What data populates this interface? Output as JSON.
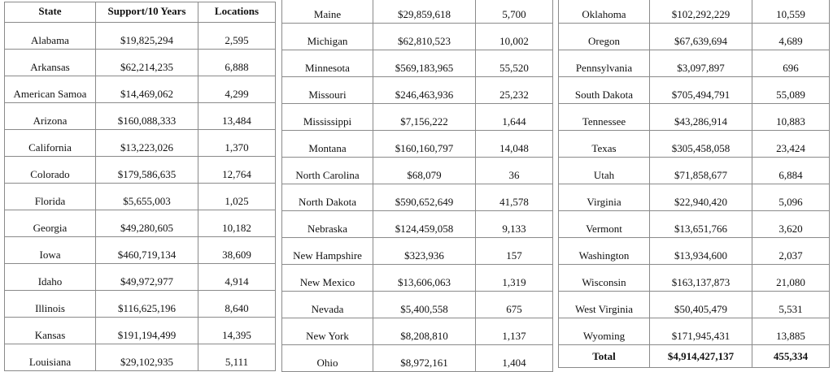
{
  "headers": {
    "state": "State",
    "support": "Support/10 Years",
    "locations": "Locations"
  },
  "tables": [
    {
      "rows": [
        [
          "Alabama",
          "$19,825,294",
          "2,595"
        ],
        [
          "Arkansas",
          "$62,214,235",
          "6,888"
        ],
        [
          "American Samoa",
          "$14,469,062",
          "4,299"
        ],
        [
          "Arizona",
          "$160,088,333",
          "13,484"
        ],
        [
          "California",
          "$13,223,026",
          "1,370"
        ],
        [
          "Colorado",
          "$179,586,635",
          "12,764"
        ],
        [
          "Florida",
          "$5,655,003",
          "1,025"
        ],
        [
          "Georgia",
          "$49,280,605",
          "10,182"
        ],
        [
          "Iowa",
          "$460,719,134",
          "38,609"
        ],
        [
          "Idaho",
          "$49,972,977",
          "4,914"
        ],
        [
          "Illinois",
          "$116,625,196",
          "8,640"
        ],
        [
          "Kansas",
          "$191,194,499",
          "14,395"
        ],
        [
          "Louisiana",
          "$29,102,935",
          "5,111"
        ]
      ]
    },
    {
      "rows": [
        [
          "Maine",
          "$29,859,618",
          "5,700"
        ],
        [
          "Michigan",
          "$62,810,523",
          "10,002"
        ],
        [
          "Minnesota",
          "$569,183,965",
          "55,520"
        ],
        [
          "Missouri",
          "$246,463,936",
          "25,232"
        ],
        [
          "Mississippi",
          "$7,156,222",
          "1,644"
        ],
        [
          "Montana",
          "$160,160,797",
          "14,048"
        ],
        [
          "North Carolina",
          "$68,079",
          "36"
        ],
        [
          "North Dakota",
          "$590,652,649",
          "41,578"
        ],
        [
          "Nebraska",
          "$124,459,058",
          "9,133"
        ],
        [
          "New Hampshire",
          "$323,936",
          "157"
        ],
        [
          "New Mexico",
          "$13,606,063",
          "1,319"
        ],
        [
          "Nevada",
          "$5,400,558",
          "675"
        ],
        [
          "New York",
          "$8,208,810",
          "1,137"
        ],
        [
          "Ohio",
          "$8,972,161",
          "1,404"
        ]
      ]
    },
    {
      "rows": [
        [
          "Oklahoma",
          "$102,292,229",
          "10,559"
        ],
        [
          "Oregon",
          "$67,639,694",
          "4,689"
        ],
        [
          "Pennsylvania",
          "$3,097,897",
          "696"
        ],
        [
          "South Dakota",
          "$705,494,791",
          "55,089"
        ],
        [
          "Tennessee",
          "$43,286,914",
          "10,883"
        ],
        [
          "Texas",
          "$305,458,058",
          "23,424"
        ],
        [
          "Utah",
          "$71,858,677",
          "6,884"
        ],
        [
          "Virginia",
          "$22,940,420",
          "5,096"
        ],
        [
          "Vermont",
          "$13,651,766",
          "3,620"
        ],
        [
          "Washington",
          "$13,934,600",
          "2,037"
        ],
        [
          "Wisconsin",
          "$163,137,873",
          "21,080"
        ],
        [
          "West Virginia",
          "$50,405,479",
          "5,531"
        ],
        [
          "Wyoming",
          "$171,945,431",
          "13,885"
        ]
      ]
    }
  ],
  "total": {
    "label": "Total",
    "support": "$4,914,427,137",
    "locations": "455,334"
  }
}
